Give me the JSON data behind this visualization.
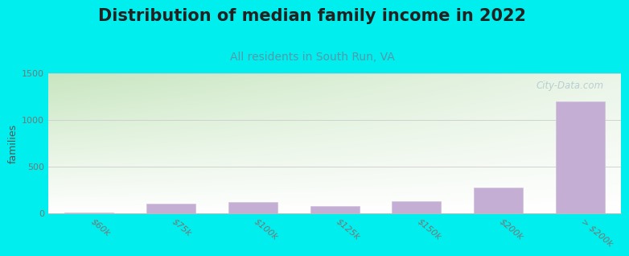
{
  "title": "Distribution of median family income in 2022",
  "subtitle": "All residents in South Run, VA",
  "ylabel": "families",
  "categories": [
    "$60k",
    "$75k",
    "$100k",
    "$125k",
    "$150k",
    "$200k",
    "> $200k"
  ],
  "values": [
    10,
    100,
    120,
    75,
    130,
    270,
    1200
  ],
  "bar_color": "#c4aed4",
  "background_color": "#00eeee",
  "plot_bg_top_left_color": "#c8e6c0",
  "plot_bg_top_right_color": "#eaf5e8",
  "plot_bg_bottom_color": "#f0f8ee",
  "grid_color": "#cccccc",
  "title_fontsize": 15,
  "subtitle_fontsize": 10,
  "ylabel_fontsize": 9,
  "tick_fontsize": 8,
  "ylim": [
    0,
    1500
  ],
  "yticks": [
    0,
    500,
    1000,
    1500
  ],
  "watermark_text": "City-Data.com",
  "title_color": "#222222",
  "subtitle_color": "#5599aa",
  "ylabel_color": "#555555",
  "tick_color": "#777777"
}
